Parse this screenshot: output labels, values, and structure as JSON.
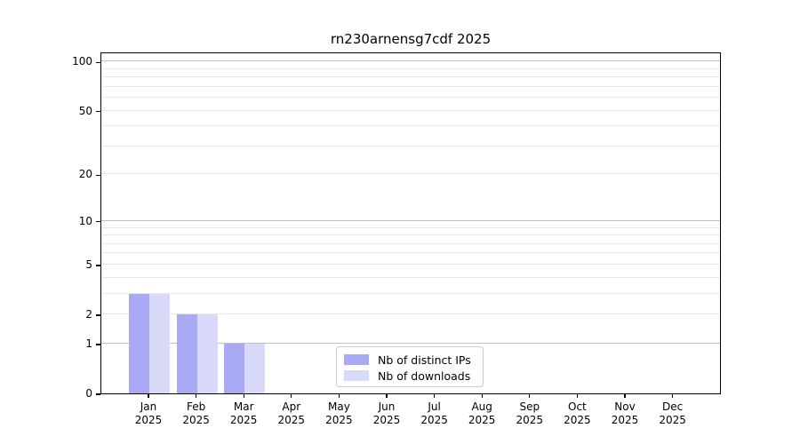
{
  "chart_data": {
    "type": "bar",
    "title": "rn230arnensg7cdf 2025",
    "categories": [
      "Jan",
      "Feb",
      "Mar",
      "Apr",
      "May",
      "Jun",
      "Jul",
      "Aug",
      "Sep",
      "Oct",
      "Nov",
      "Dec"
    ],
    "x_year_label": "2025",
    "series": [
      {
        "name": "Nb of distinct IPs",
        "color": "#a9a9f4",
        "values": [
          3,
          2,
          1,
          0,
          0,
          0,
          0,
          0,
          0,
          0,
          0,
          0
        ]
      },
      {
        "name": "Nb of downloads",
        "color": "#d9d9fa",
        "values": [
          3,
          2,
          1,
          0,
          0,
          0,
          0,
          0,
          0,
          0,
          0,
          0
        ]
      }
    ],
    "yscale": "log1p",
    "ylim": [
      0,
      115
    ],
    "y_tick_values": [
      0,
      1,
      2,
      5,
      10,
      20,
      50,
      100
    ],
    "y_major_gridlines": [
      1,
      10,
      100
    ],
    "y_minor_gridlines": [
      2,
      3,
      4,
      5,
      6,
      7,
      8,
      9,
      20,
      30,
      40,
      50,
      60,
      70,
      80,
      90
    ],
    "legend": {
      "position": "lower center"
    },
    "colors": {
      "axis": "#000000",
      "major_grid": "#c0c0c0",
      "minor_grid": "#e8e8e8",
      "legend_border": "#cccccc"
    }
  }
}
